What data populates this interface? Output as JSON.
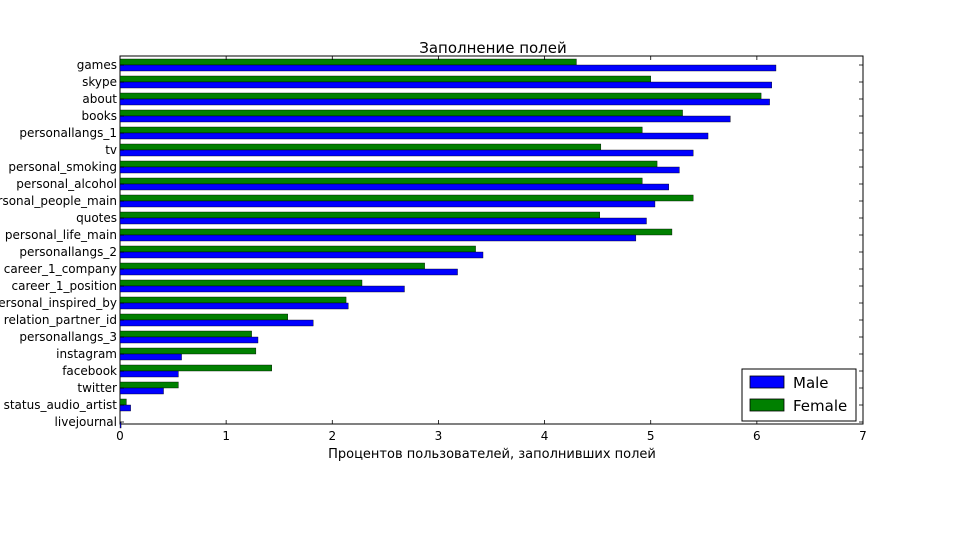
{
  "chart_data": {
    "type": "bar",
    "orientation": "horizontal",
    "title": "Заполнение полей",
    "xlabel": "Процентов пользователей, заполнивших полей",
    "ylabel": "",
    "xlim": [
      0,
      7
    ],
    "xticks": [
      "0",
      "1",
      "2",
      "3",
      "4",
      "5",
      "6",
      "7"
    ],
    "grid": false,
    "legend_position": "bottom-right",
    "categories": [
      "games",
      "skype",
      "about",
      "books",
      "personallangs_1",
      "tv",
      "personal_smoking",
      "personal_alcohol",
      "personal_people_main",
      "quotes",
      "personal_life_main",
      "personallangs_2",
      "career_1_company",
      "career_1_position",
      "personal_inspired_by",
      "relation_partner_id",
      "personallangs_3",
      "instagram",
      "facebook",
      "twitter",
      "status_audio_artist",
      "livejournal"
    ],
    "series": [
      {
        "name": "Male",
        "color": "#0000ff",
        "values": [
          6.18,
          6.14,
          6.12,
          5.75,
          5.54,
          5.4,
          5.27,
          5.17,
          5.04,
          4.96,
          4.86,
          3.42,
          3.18,
          2.68,
          2.15,
          1.82,
          1.3,
          0.58,
          0.55,
          0.41,
          0.1,
          0.01
        ]
      },
      {
        "name": "Female",
        "color": "#008000",
        "values": [
          4.3,
          5.0,
          6.04,
          5.3,
          4.92,
          4.53,
          5.06,
          4.92,
          5.4,
          4.52,
          5.2,
          3.35,
          2.87,
          2.28,
          2.13,
          1.58,
          1.24,
          1.28,
          1.43,
          0.55,
          0.06,
          0.0
        ]
      }
    ]
  }
}
